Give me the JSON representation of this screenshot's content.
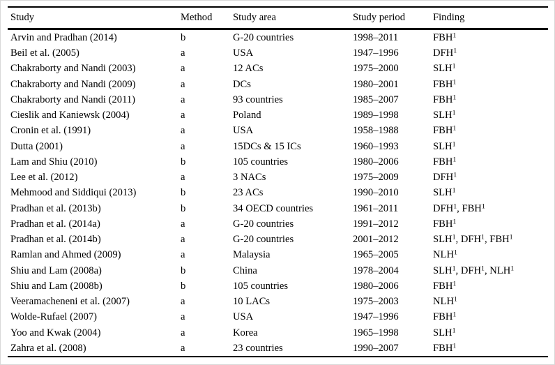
{
  "table": {
    "columns": [
      "Study",
      "Method",
      "Study area",
      "Study period",
      "Finding"
    ],
    "rows": [
      {
        "study": "Arvin and Pradhan (2014)",
        "method": "b",
        "area": "G-20 countries",
        "period": "1998–2011",
        "finding": "FBH¹"
      },
      {
        "study": "Beil et al. (2005)",
        "method": "a",
        "area": "USA",
        "period": "1947–1996",
        "finding": "DFH¹"
      },
      {
        "study": "Chakraborty and Nandi (2003)",
        "method": "a",
        "area": "12 ACs",
        "period": "1975–2000",
        "finding": "SLH¹"
      },
      {
        "study": "Chakraborty and Nandi (2009)",
        "method": "a",
        "area": "DCs",
        "period": "1980–2001",
        "finding": "FBH¹"
      },
      {
        "study": "Chakraborty and Nandi (2011)",
        "method": "a",
        "area": "93 countries",
        "period": "1985–2007",
        "finding": "FBH¹"
      },
      {
        "study": "Cieslik and Kaniewsk (2004)",
        "method": "a",
        "area": "Poland",
        "period": "1989–1998",
        "finding": "SLH¹"
      },
      {
        "study": "Cronin et al. (1991)",
        "method": "a",
        "area": "USA",
        "period": "1958–1988",
        "finding": "FBH¹"
      },
      {
        "study": "Dutta (2001)",
        "method": "a",
        "area": "15DCs & 15 ICs",
        "period": "1960–1993",
        "finding": "SLH¹"
      },
      {
        "study": "Lam and Shiu (2010)",
        "method": "b",
        "area": "105 countries",
        "period": "1980–2006",
        "finding": "FBH¹"
      },
      {
        "study": "Lee et al. (2012)",
        "method": "a",
        "area": "3 NACs",
        "period": "1975–2009",
        "finding": "DFH¹"
      },
      {
        "study": "Mehmood and Siddiqui (2013)",
        "method": "b",
        "area": "23 ACs",
        "period": "1990–2010",
        "finding": "SLH¹"
      },
      {
        "study": "Pradhan et al. (2013b)",
        "method": "b",
        "area": "34 OECD countries",
        "period": "1961–2011",
        "finding": "DFH¹, FBH¹"
      },
      {
        "study": "Pradhan et al. (2014a)",
        "method": "a",
        "area": "G-20 countries",
        "period": "1991–2012",
        "finding": "FBH¹"
      },
      {
        "study": "Pradhan et al. (2014b)",
        "method": "a",
        "area": "G-20 countries",
        "period": "2001–2012",
        "finding": "SLH¹, DFH¹, FBH¹"
      },
      {
        "study": "Ramlan and Ahmed (2009)",
        "method": "a",
        "area": "Malaysia",
        "period": "1965–2005",
        "finding": "NLH¹"
      },
      {
        "study": "Shiu and Lam (2008a)",
        "method": "b",
        "area": "China",
        "period": "1978–2004",
        "finding": "SLH¹, DFH¹, NLH¹"
      },
      {
        "study": "Shiu and Lam (2008b)",
        "method": "b",
        "area": "105 countries",
        "period": "1980–2006",
        "finding": "FBH¹"
      },
      {
        "study": "Veeramacheneni et al. (2007)",
        "method": "a",
        "area": "10 LACs",
        "period": "1975–2003",
        "finding": "NLH¹"
      },
      {
        "study": "Wolde-Rufael (2007)",
        "method": "a",
        "area": "USA",
        "period": "1947–1996",
        "finding": "FBH¹"
      },
      {
        "study": "Yoo and Kwak (2004)",
        "method": "a",
        "area": "Korea",
        "period": "1965–1998",
        "finding": "SLH¹"
      },
      {
        "study": "Zahra et al. (2008)",
        "method": "a",
        "area": "23 countries",
        "period": "1990–2007",
        "finding": "FBH¹"
      }
    ]
  },
  "colors": {
    "rule": "#000000",
    "text": "#000000",
    "page_border": "#d8d8d8",
    "background": "#ffffff"
  }
}
